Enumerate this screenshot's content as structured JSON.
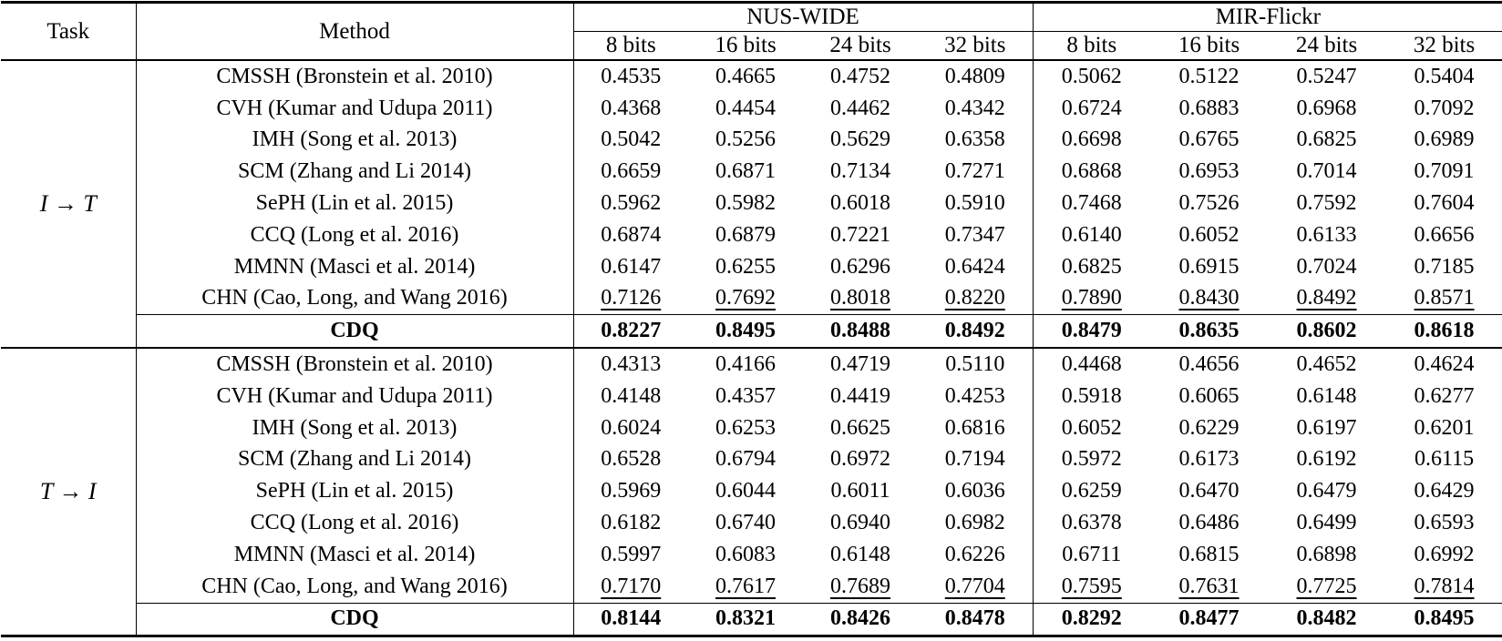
{
  "table": {
    "header": {
      "task": "Task",
      "method": "Method",
      "group1": "NUS-WIDE",
      "group2": "MIR-Flickr",
      "bits": [
        "8 bits",
        "16 bits",
        "24 bits",
        "32 bits"
      ]
    },
    "sections": [
      {
        "task": "I → T",
        "rows": [
          {
            "method": "CMSSH (Bronstein et al. 2010)",
            "emphasis": "none",
            "nus": [
              "0.4535",
              "0.4665",
              "0.4752",
              "0.4809"
            ],
            "mir": [
              "0.5062",
              "0.5122",
              "0.5247",
              "0.5404"
            ]
          },
          {
            "method": "CVH (Kumar and Udupa 2011)",
            "emphasis": "none",
            "nus": [
              "0.4368",
              "0.4454",
              "0.4462",
              "0.4342"
            ],
            "mir": [
              "0.6724",
              "0.6883",
              "0.6968",
              "0.7092"
            ]
          },
          {
            "method": "IMH (Song et al. 2013)",
            "emphasis": "none",
            "nus": [
              "0.5042",
              "0.5256",
              "0.5629",
              "0.6358"
            ],
            "mir": [
              "0.6698",
              "0.6765",
              "0.6825",
              "0.6989"
            ]
          },
          {
            "method": "SCM (Zhang and Li 2014)",
            "emphasis": "none",
            "nus": [
              "0.6659",
              "0.6871",
              "0.7134",
              "0.7271"
            ],
            "mir": [
              "0.6868",
              "0.6953",
              "0.7014",
              "0.7091"
            ]
          },
          {
            "method": "SePH (Lin et al. 2015)",
            "emphasis": "none",
            "nus": [
              "0.5962",
              "0.5982",
              "0.6018",
              "0.5910"
            ],
            "mir": [
              "0.7468",
              "0.7526",
              "0.7592",
              "0.7604"
            ]
          },
          {
            "method": "CCQ (Long et al. 2016)",
            "emphasis": "none",
            "nus": [
              "0.6874",
              "0.6879",
              "0.7221",
              "0.7347"
            ],
            "mir": [
              "0.6140",
              "0.6052",
              "0.6133",
              "0.6656"
            ]
          },
          {
            "method": "MMNN (Masci et al. 2014)",
            "emphasis": "none",
            "nus": [
              "0.6147",
              "0.6255",
              "0.6296",
              "0.6424"
            ],
            "mir": [
              "0.6825",
              "0.6915",
              "0.7024",
              "0.7185"
            ]
          },
          {
            "method": "CHN (Cao, Long, and Wang 2016)",
            "emphasis": "underline",
            "nus": [
              "0.7126",
              "0.7692",
              "0.8018",
              "0.8220"
            ],
            "mir": [
              "0.7890",
              "0.8430",
              "0.8492",
              "0.8571"
            ]
          },
          {
            "method": "CDQ",
            "emphasis": "bold",
            "nus": [
              "0.8227",
              "0.8495",
              "0.8488",
              "0.8492"
            ],
            "mir": [
              "0.8479",
              "0.8635",
              "0.8602",
              "0.8618"
            ]
          }
        ]
      },
      {
        "task": "T → I",
        "rows": [
          {
            "method": "CMSSH (Bronstein et al. 2010)",
            "emphasis": "none",
            "nus": [
              "0.4313",
              "0.4166",
              "0.4719",
              "0.5110"
            ],
            "mir": [
              "0.4468",
              "0.4656",
              "0.4652",
              "0.4624"
            ]
          },
          {
            "method": "CVH (Kumar and Udupa 2011)",
            "emphasis": "none",
            "nus": [
              "0.4148",
              "0.4357",
              "0.4419",
              "0.4253"
            ],
            "mir": [
              "0.5918",
              "0.6065",
              "0.6148",
              "0.6277"
            ]
          },
          {
            "method": "IMH (Song et al. 2013)",
            "emphasis": "none",
            "nus": [
              "0.6024",
              "0.6253",
              "0.6625",
              "0.6816"
            ],
            "mir": [
              "0.6052",
              "0.6229",
              "0.6197",
              "0.6201"
            ]
          },
          {
            "method": "SCM (Zhang and Li 2014)",
            "emphasis": "none",
            "nus": [
              "0.6528",
              "0.6794",
              "0.6972",
              "0.7194"
            ],
            "mir": [
              "0.5972",
              "0.6173",
              "0.6192",
              "0.6115"
            ]
          },
          {
            "method": "SePH (Lin et al. 2015)",
            "emphasis": "none",
            "nus": [
              "0.5969",
              "0.6044",
              "0.6011",
              "0.6036"
            ],
            "mir": [
              "0.6259",
              "0.6470",
              "0.6479",
              "0.6429"
            ]
          },
          {
            "method": "CCQ (Long et al. 2016)",
            "emphasis": "none",
            "nus": [
              "0.6182",
              "0.6740",
              "0.6940",
              "0.6982"
            ],
            "mir": [
              "0.6378",
              "0.6486",
              "0.6499",
              "0.6593"
            ]
          },
          {
            "method": "MMNN (Masci et al. 2014)",
            "emphasis": "none",
            "nus": [
              "0.5997",
              "0.6083",
              "0.6148",
              "0.6226"
            ],
            "mir": [
              "0.6711",
              "0.6815",
              "0.6898",
              "0.6992"
            ]
          },
          {
            "method": "CHN (Cao, Long, and Wang 2016)",
            "emphasis": "underline",
            "nus": [
              "0.7170",
              "0.7617",
              "0.7689",
              "0.7704"
            ],
            "mir": [
              "0.7595",
              "0.7631",
              "0.7725",
              "0.7814"
            ]
          },
          {
            "method": "CDQ",
            "emphasis": "bold",
            "nus": [
              "0.8144",
              "0.8321",
              "0.8426",
              "0.8478"
            ],
            "mir": [
              "0.8292",
              "0.8477",
              "0.8482",
              "0.8495"
            ]
          }
        ]
      }
    ]
  }
}
